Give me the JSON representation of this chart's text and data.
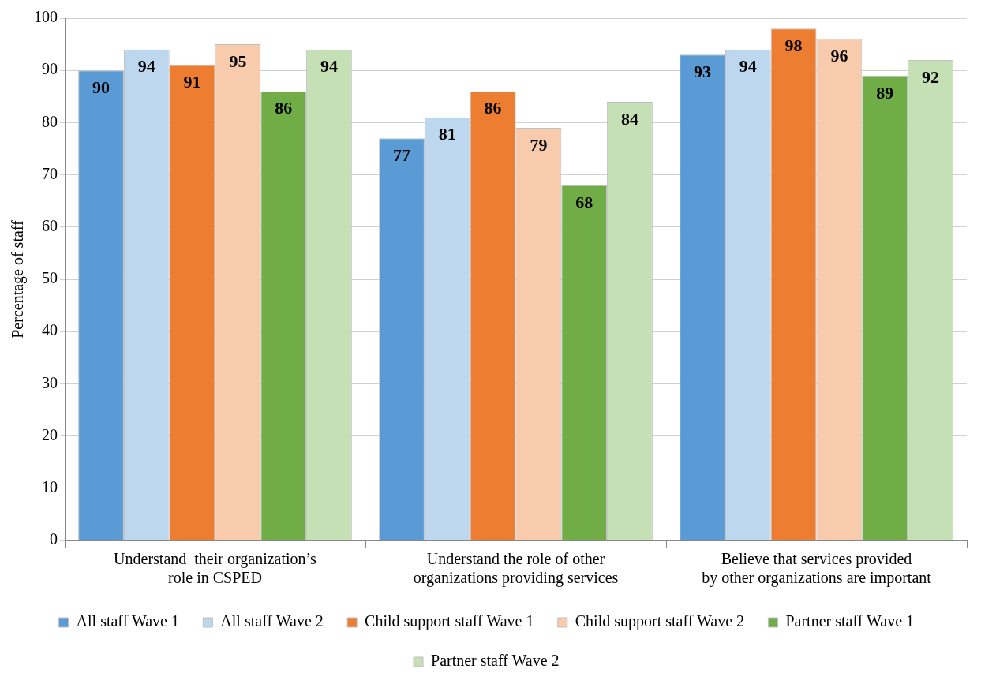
{
  "chart_data": {
    "type": "bar",
    "ylabel": "Percentage of staff",
    "categories": [
      "Understand  their organization’s\nrole in CSPED",
      "Understand the role of other\norganizations providing services",
      "Believe that services provided\nby other organizations are important"
    ],
    "series": [
      {
        "name": "All staff Wave 1",
        "color": "#5b9bd5",
        "values": [
          90,
          77,
          93
        ]
      },
      {
        "name": "All staff Wave 2",
        "color": "#bdd7ee",
        "values": [
          94,
          81,
          94
        ]
      },
      {
        "name": "Child support staff Wave 1",
        "color": "#ed7d31",
        "values": [
          91,
          86,
          98
        ]
      },
      {
        "name": "Child support staff Wave 2",
        "color": "#f8cbad",
        "values": [
          95,
          79,
          96
        ]
      },
      {
        "name": "Partner staff Wave 1",
        "color": "#70ad47",
        "values": [
          86,
          68,
          89
        ]
      },
      {
        "name": "Partner staff Wave 2",
        "color": "#c5e0b4",
        "values": [
          94,
          84,
          92
        ]
      }
    ],
    "ylim": [
      0,
      100
    ],
    "yticks": [
      0,
      10,
      20,
      30,
      40,
      50,
      60,
      70,
      80,
      90,
      100
    ],
    "grid": "y",
    "legend": "bottom",
    "data_labels": true
  }
}
